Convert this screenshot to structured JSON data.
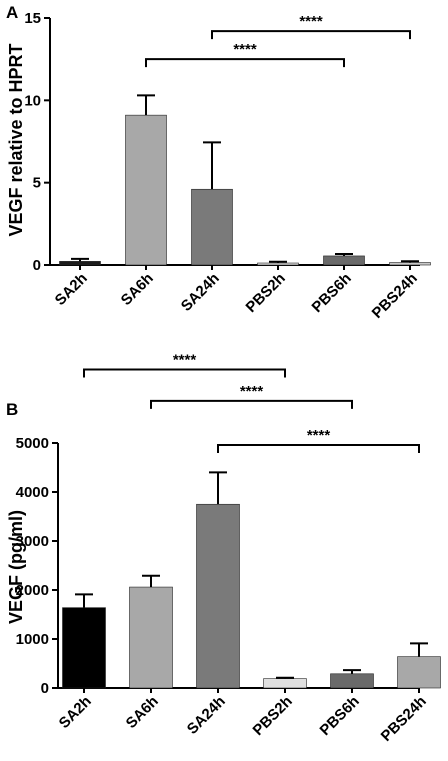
{
  "chart_data": [
    {
      "panel": "A",
      "type": "bar",
      "ylabel": "VEGF relative to HPRT",
      "ylim": [
        0,
        15
      ],
      "yticks": [
        0,
        5,
        10,
        15
      ],
      "categories": [
        "SA2h",
        "SA6h",
        "SA24h",
        "PBS2h",
        "PBS6h",
        "PBS24h"
      ],
      "values": [
        0.22,
        9.1,
        4.6,
        0.12,
        0.55,
        0.15
      ],
      "errors": [
        0.15,
        1.2,
        2.85,
        0.08,
        0.12,
        0.08
      ],
      "colors": [
        "#1c1c1c",
        "#a8a8a8",
        "#7a7a7a",
        "#e0e0e0",
        "#6a6a6a",
        "#c8c8c8"
      ],
      "significance": [
        {
          "from": "SA24h",
          "to": "PBS24h",
          "label": "****",
          "y": 14.2
        },
        {
          "from": "SA6h",
          "to": "PBS6h",
          "label": "****",
          "y": 12.5
        }
      ]
    },
    {
      "panel": "B",
      "type": "bar",
      "ylabel": "VEGF  (pg/ml)",
      "ylim": [
        0,
        5000
      ],
      "yticks": [
        0,
        1000,
        2000,
        3000,
        4000,
        5000
      ],
      "categories": [
        "SA2h",
        "SA6h",
        "SA24h",
        "PBS2h",
        "PBS6h",
        "PBS24h"
      ],
      "values": [
        1640,
        2060,
        3750,
        190,
        290,
        640
      ],
      "errors": [
        270,
        230,
        650,
        20,
        75,
        270
      ],
      "colors": [
        "#000000",
        "#a8a8a8",
        "#7a7a7a",
        "#e0e0e0",
        "#6a6a6a",
        "#a8a8a8"
      ],
      "significance": [
        {
          "from": "SA2h",
          "to": "PBS2h",
          "label": "****",
          "y": 6500
        },
        {
          "from": "SA6h",
          "to": "PBS6h",
          "label": "****",
          "y": 5860
        },
        {
          "from": "SA24h",
          "to": "PBS24h",
          "label": "****",
          "y": 4960
        }
      ]
    }
  ]
}
